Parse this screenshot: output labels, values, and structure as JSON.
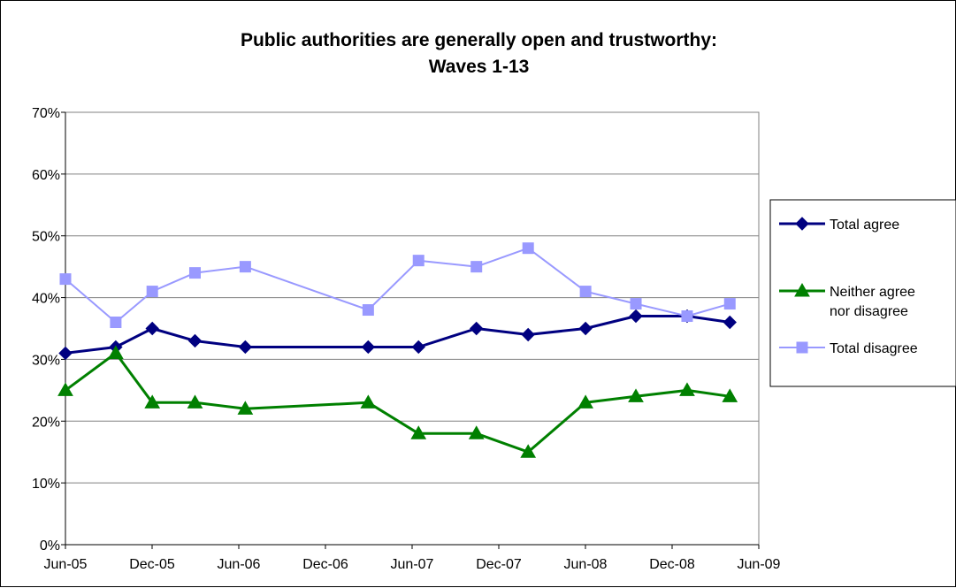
{
  "chart_data": {
    "type": "line",
    "title_line1": "Public authorities are generally open and trustworthy:",
    "title_line2": "Waves 1-13",
    "xlabel": "",
    "ylabel": "",
    "ylim": [
      0,
      70
    ],
    "y_ticks": [
      "0%",
      "10%",
      "20%",
      "30%",
      "40%",
      "50%",
      "60%",
      "70%"
    ],
    "x_ticks": [
      "Jun-05",
      "Dec-05",
      "Jun-06",
      "Dec-06",
      "Jun-07",
      "Dec-07",
      "Jun-08",
      "Dec-08",
      "Jun-09"
    ],
    "x_range": [
      "2005-06-01",
      "2009-06-01"
    ],
    "x": [
      "2005-06-01",
      "2005-09-15",
      "2005-12-01",
      "2006-03-01",
      "2006-06-15",
      "2007-03-01",
      "2007-06-15",
      "2007-10-15",
      "2008-02-01",
      "2008-06-01",
      "2008-09-15",
      "2009-01-01",
      "2009-04-01"
    ],
    "grid": true,
    "legend_position": "right",
    "series": [
      {
        "name": "Total agree",
        "marker": "diamond",
        "color": "#000080",
        "values": [
          31,
          32,
          35,
          33,
          32,
          32,
          32,
          35,
          34,
          35,
          37,
          37,
          36
        ]
      },
      {
        "name": "Neither agree nor disagree",
        "marker": "triangle",
        "color": "#008000",
        "values": [
          25,
          31,
          23,
          23,
          22,
          23,
          18,
          18,
          15,
          23,
          24,
          25,
          24
        ]
      },
      {
        "name": "Total disagree",
        "marker": "square",
        "color": "#9999FF",
        "values": [
          43,
          36,
          41,
          44,
          45,
          38,
          46,
          45,
          48,
          41,
          39,
          37,
          39
        ]
      }
    ],
    "legend": {
      "total_agree": "Total agree",
      "neither_line1": "Neither agree",
      "neither_line2": "nor disagree",
      "total_disagree": "Total disagree"
    }
  }
}
